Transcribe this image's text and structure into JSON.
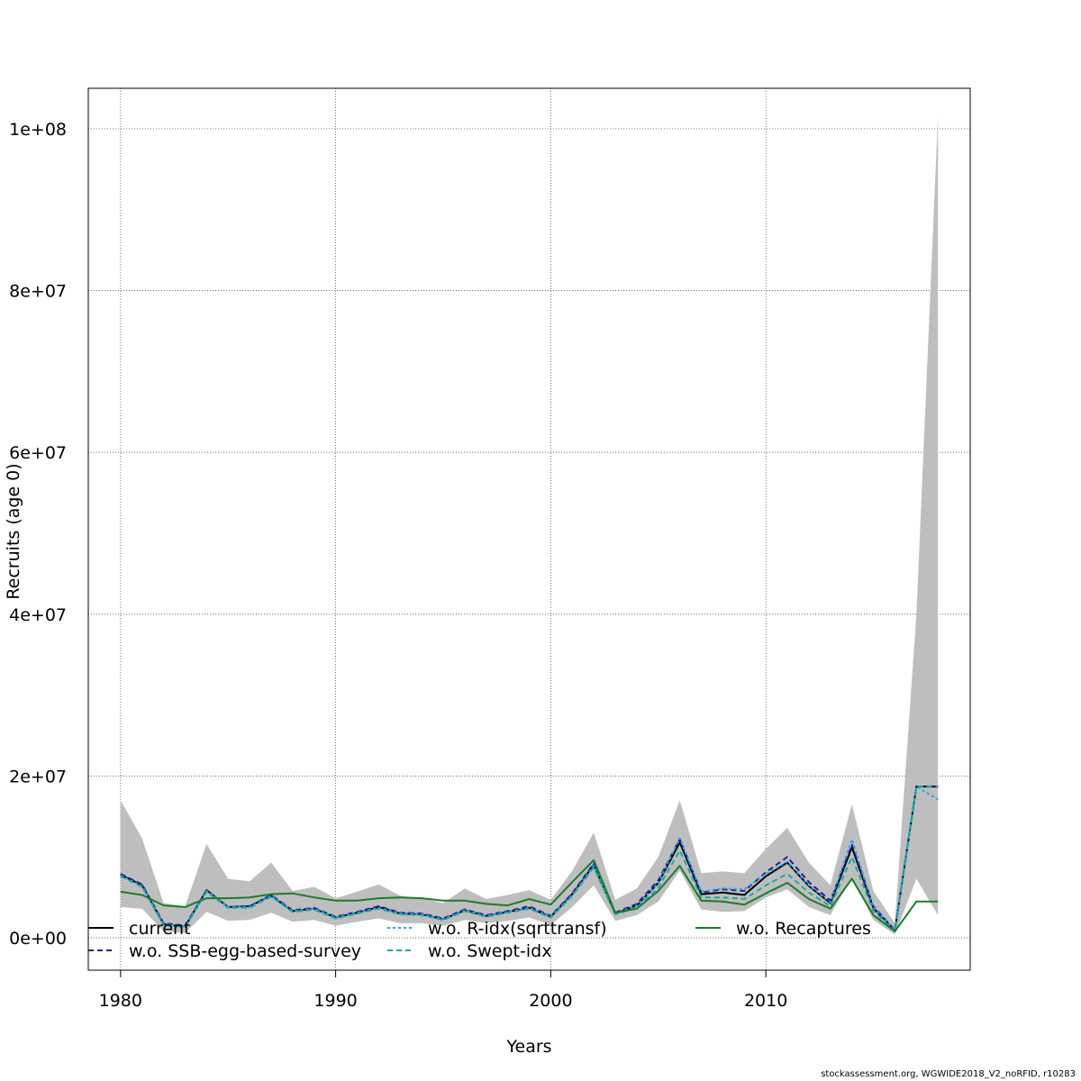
{
  "chart_data": {
    "type": "line",
    "xlabel": "Years",
    "ylabel": "Recruits (age 0)",
    "xlim": [
      1978.5,
      2019.5
    ],
    "ylim": [
      -4000000,
      105000000
    ],
    "x_ticks": [
      1980,
      1990,
      2000,
      2010
    ],
    "x_tick_labels": [
      "1980",
      "1990",
      "2000",
      "2010"
    ],
    "y_ticks": [
      0,
      20000000,
      40000000,
      60000000,
      80000000,
      100000000
    ],
    "y_tick_labels": [
      "0e+00",
      "2e+07",
      "4e+07",
      "6e+07",
      "8e+07",
      "1e+08"
    ],
    "grid": true,
    "legend_position": "bottom",
    "x": [
      1980,
      1981,
      1982,
      1983,
      1984,
      1985,
      1986,
      1987,
      1988,
      1989,
      1990,
      1991,
      1992,
      1993,
      1994,
      1995,
      1996,
      1997,
      1998,
      1999,
      2000,
      2001,
      2002,
      2003,
      2004,
      2005,
      2006,
      2007,
      2008,
      2009,
      2010,
      2011,
      2012,
      2013,
      2014,
      2015,
      2016,
      2017,
      2018
    ],
    "confidence_band": {
      "fill": "#bebebe",
      "upper": [
        17000000,
        12300000,
        4300000,
        3900000,
        11600000,
        7300000,
        7000000,
        9300000,
        5800000,
        6300000,
        4900000,
        5700000,
        6600000,
        5200000,
        4900000,
        4300000,
        6100000,
        4800000,
        5300000,
        5900000,
        4700000,
        8300000,
        13000000,
        4700000,
        6100000,
        10000000,
        17000000,
        8000000,
        8200000,
        8000000,
        11000000,
        13600000,
        9300000,
        6500000,
        16500000,
        5800000,
        1800000,
        40000000,
        101500000
      ],
      "lower": [
        3800000,
        3600000,
        800000,
        600000,
        3200000,
        2100000,
        2200000,
        3100000,
        2000000,
        2200000,
        1500000,
        2000000,
        2400000,
        1800000,
        1800000,
        1500000,
        2200000,
        1800000,
        2100000,
        2500000,
        1600000,
        3800000,
        6500000,
        2100000,
        2800000,
        4500000,
        8300000,
        3500000,
        3200000,
        3300000,
        5000000,
        6000000,
        3800000,
        2800000,
        7500000,
        2200000,
        400000,
        7300000,
        2800000
      ]
    },
    "series": [
      {
        "name": "current",
        "color": "#000000",
        "dash": "solid",
        "values": [
          7800000,
          6500000,
          1700000,
          1400000,
          5900000,
          3800000,
          3900000,
          5200000,
          3300000,
          3600000,
          2500000,
          3100000,
          3800000,
          3000000,
          2900000,
          2300000,
          3400000,
          2700000,
          3200000,
          3700000,
          2600000,
          5400000,
          9000000,
          3000000,
          4000000,
          6800000,
          11800000,
          5400000,
          5600000,
          5300000,
          7600000,
          9300000,
          6400000,
          4300000,
          11200000,
          3700000,
          900000,
          18700000,
          18700000
        ]
      },
      {
        "name": "w.o. SSB-egg-based-survey",
        "color": "#2a1a8f",
        "dash": "6,4",
        "values": [
          7900000,
          6600000,
          1800000,
          1500000,
          5900000,
          3800000,
          3900000,
          5300000,
          3400000,
          3700000,
          2600000,
          3200000,
          3900000,
          3100000,
          3000000,
          2400000,
          3500000,
          2800000,
          3300000,
          3900000,
          2700000,
          5500000,
          9200000,
          3100000,
          4200000,
          7100000,
          12200000,
          5600000,
          6000000,
          5800000,
          8100000,
          10000000,
          6900000,
          4600000,
          11500000,
          3900000,
          950000,
          18700000,
          18700000
        ]
      },
      {
        "name": "w.o. R-idx(sqrttransf)",
        "color": "#22a6e8",
        "dash": "3,3",
        "values": [
          7700000,
          6400000,
          1700000,
          1400000,
          5800000,
          3800000,
          3800000,
          5200000,
          3300000,
          3600000,
          2500000,
          3100000,
          3700000,
          3000000,
          2900000,
          2300000,
          3400000,
          2700000,
          3200000,
          3700000,
          2600000,
          5300000,
          8900000,
          3000000,
          4000000,
          6800000,
          12300000,
          5700000,
          6100000,
          6000000,
          7900000,
          9400000,
          6500000,
          4400000,
          12200000,
          3800000,
          900000,
          18700000,
          17100000
        ]
      },
      {
        "name": "w.o. Swept-idx",
        "color": "#1fa89a",
        "dash": "6,4",
        "values": [
          7600000,
          6300000,
          1600000,
          1300000,
          5700000,
          3700000,
          3700000,
          5100000,
          3200000,
          3500000,
          2400000,
          3000000,
          3600000,
          2900000,
          2800000,
          2200000,
          3300000,
          2600000,
          3100000,
          3600000,
          2500000,
          5200000,
          8700000,
          2900000,
          3700000,
          6200000,
          10800000,
          5000000,
          5000000,
          4800000,
          6500000,
          7900000,
          5600000,
          3900000,
          10000000,
          3300000,
          800000,
          18700000,
          18700000
        ]
      },
      {
        "name": "w.o. Recaptures",
        "color": "#1e7a2c",
        "dash": "solid",
        "values": [
          5700000,
          5300000,
          4000000,
          3800000,
          4900000,
          4900000,
          5000000,
          5400000,
          5500000,
          5000000,
          4600000,
          4600000,
          4900000,
          5000000,
          4900000,
          4600000,
          4600000,
          4200000,
          4000000,
          4800000,
          4100000,
          6900000,
          9600000,
          3100000,
          3600000,
          5800000,
          8900000,
          4600000,
          4500000,
          4100000,
          5500000,
          6800000,
          4800000,
          3600000,
          7300000,
          2800000,
          800000,
          4500000,
          4500000
        ]
      }
    ]
  },
  "footer": "stockassessment.org, WGWIDE2018_V2_noRFID, r10283"
}
